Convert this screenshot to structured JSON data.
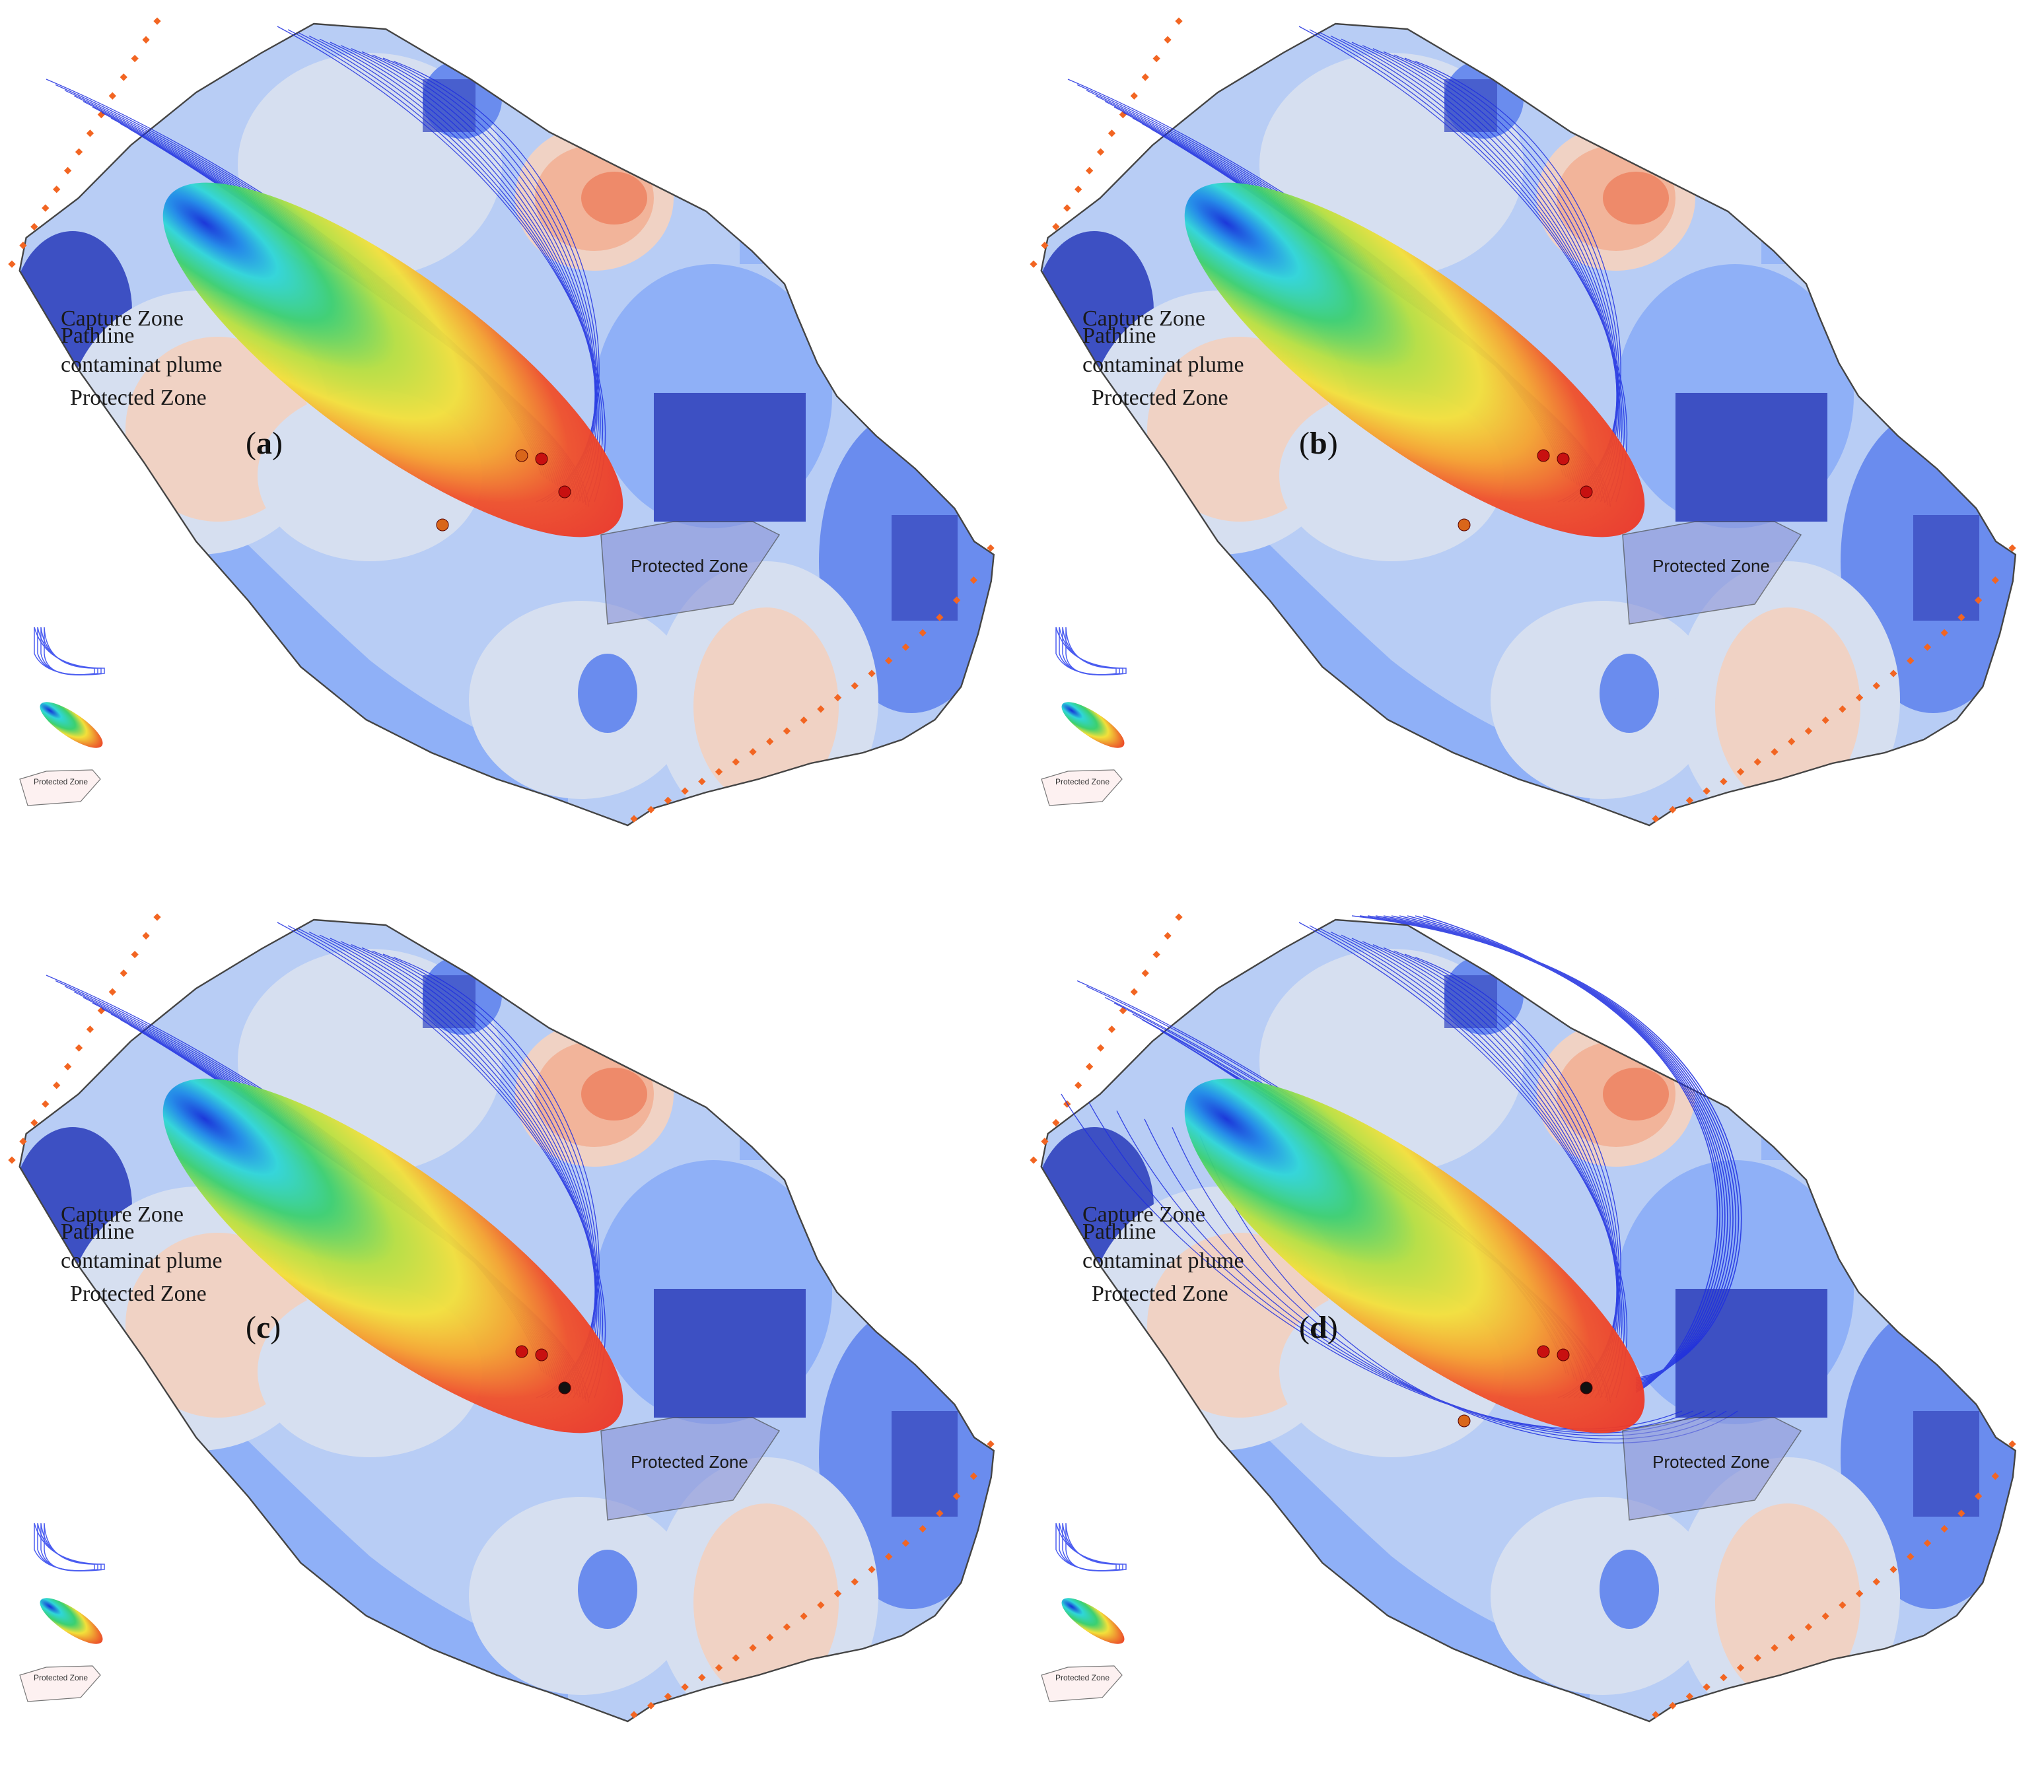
{
  "legend": {
    "capture_zone_line1": "Capture Zone",
    "capture_zone_line2": "Pathline",
    "plume": "contaminat plume",
    "protected_zone": "Protected Zone",
    "protected_zone_mini": "Protected Zone"
  },
  "zone_label": "Protected Zone",
  "panels": [
    {
      "letter": "a",
      "wells": [
        "red",
        "red",
        "orange",
        "orange"
      ],
      "pathline_variant": "a"
    },
    {
      "letter": "b",
      "wells": [
        "red",
        "red",
        "red",
        "orange"
      ],
      "pathline_variant": "b"
    },
    {
      "letter": "c",
      "wells": [
        "black",
        "red",
        "red"
      ],
      "pathline_variant": "c"
    },
    {
      "letter": "d",
      "wells": [
        "black",
        "red",
        "red",
        "orange"
      ],
      "pathline_variant": "d"
    }
  ],
  "colors": {
    "field_dark_blue": "#3d50c3",
    "field_blue": "#6a8cee",
    "field_mid_blue": "#8fb0f7",
    "field_light_blue": "#b8cdf5",
    "field_pale": "#d6dff0",
    "field_light_salmon": "#f0d2c4",
    "field_salmon": "#f2b49a",
    "field_orange": "#ee8a6a",
    "pathline": "#1f2fe0",
    "boundary_marker": "#f26522",
    "protected_zone_fill": "#8a93d8"
  }
}
